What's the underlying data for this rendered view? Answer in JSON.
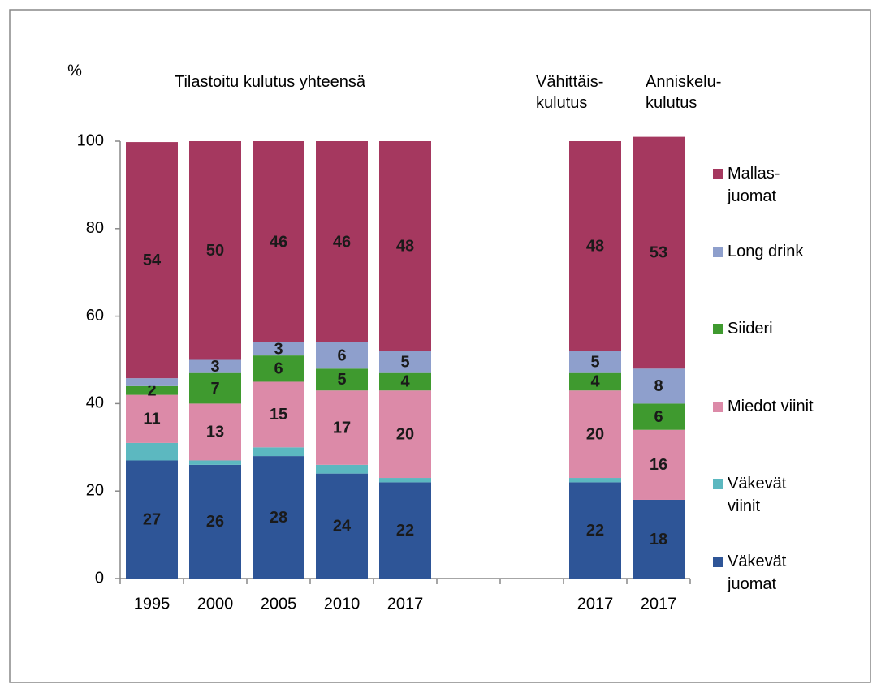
{
  "chart_data": {
    "type": "stacked_bar",
    "y_label": "%",
    "annotations": [
      "Tilastoitu kulutus yhteensä",
      "Vähittäis-\nkulutus",
      "Anniskelu-\nkulutus"
    ],
    "categories": [
      "1995",
      "2000",
      "2005",
      "2010",
      "2017",
      null,
      null,
      "2017",
      "2017"
    ],
    "series": [
      {
        "name": "Väkevät\njuomat",
        "color": "#2e5597",
        "values": [
          27,
          26,
          28,
          24,
          22,
          null,
          null,
          22,
          18
        ]
      },
      {
        "name": "Väkevät\nviinit",
        "color": "#5cb8c0",
        "data_labels": false,
        "values": [
          4,
          1,
          2,
          2,
          1,
          null,
          null,
          1,
          0
        ]
      },
      {
        "name": "Miedot viinit",
        "color": "#dc8aa8",
        "values": [
          11,
          13,
          15,
          17,
          20,
          null,
          null,
          20,
          16
        ]
      },
      {
        "name": "Siideri",
        "color": "#3f9a2f",
        "values": [
          2,
          7,
          6,
          5,
          4,
          null,
          null,
          4,
          6
        ]
      },
      {
        "name": "Long drink",
        "color": "#8e9fcc",
        "values": [
          1.8,
          3,
          3,
          6,
          5,
          null,
          null,
          5,
          8
        ]
      },
      {
        "name": "Mallas-\njuomat",
        "color": "#a5385f",
        "values": [
          54,
          50,
          46,
          46,
          48,
          null,
          null,
          48,
          53
        ]
      }
    ],
    "ylim": [
      0,
      100
    ],
    "yticks": [
      0,
      20,
      40,
      60,
      80,
      100
    ],
    "legend": "right"
  }
}
